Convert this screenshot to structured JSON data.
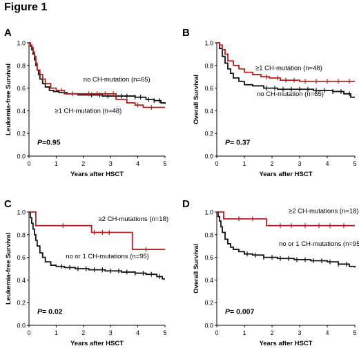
{
  "figure_title": "Figure 1",
  "colors": {
    "black_series": "#111111",
    "red_series": "#b42020",
    "axis": "#000000"
  },
  "chart_data": [
    {
      "panel_label": "A",
      "type": "line",
      "step": true,
      "xlabel": "Years after HSCT",
      "ylabel": "Leukemia-free Survival",
      "xlim": [
        0,
        5
      ],
      "ylim": [
        0,
        1.0
      ],
      "xticks": [
        "0",
        "1",
        "2",
        "3",
        "4",
        "5"
      ],
      "yticks": [
        "0.0",
        "0.2",
        "0.4",
        "0.6",
        "0.8",
        "1.0"
      ],
      "p_label": "P",
      "p_value": "=0.95",
      "series": [
        {
          "name": "no CH-mutation (n=65)",
          "color": "#111111",
          "x": [
            0,
            0.05,
            0.1,
            0.15,
            0.2,
            0.25,
            0.3,
            0.35,
            0.4,
            0.5,
            0.6,
            0.75,
            0.9,
            1.1,
            1.4,
            1.8,
            2.2,
            2.7,
            3.3,
            3.9,
            4.3,
            4.6,
            4.85,
            5.0
          ],
          "y": [
            1.0,
            0.97,
            0.94,
            0.9,
            0.85,
            0.8,
            0.76,
            0.72,
            0.68,
            0.64,
            0.61,
            0.58,
            0.57,
            0.56,
            0.55,
            0.54,
            0.54,
            0.53,
            0.53,
            0.52,
            0.5,
            0.49,
            0.47,
            0.46
          ],
          "censor_x": [
            2.3,
            2.6,
            2.9,
            3.2,
            3.4,
            3.6,
            3.9,
            4.1,
            4.4,
            4.6,
            4.8
          ]
        },
        {
          "name": "≥1 CH-mutation (n=48)",
          "color": "#b42020",
          "x": [
            0,
            0.05,
            0.1,
            0.15,
            0.2,
            0.25,
            0.3,
            0.4,
            0.5,
            0.6,
            0.8,
            1.0,
            1.3,
            1.7,
            2.1,
            2.6,
            3.2,
            3.6,
            3.9,
            4.2,
            5.0
          ],
          "y": [
            1.0,
            0.98,
            0.96,
            0.92,
            0.88,
            0.82,
            0.76,
            0.72,
            0.68,
            0.64,
            0.6,
            0.58,
            0.55,
            0.55,
            0.55,
            0.55,
            0.5,
            0.47,
            0.45,
            0.43,
            0.43
          ],
          "censor_x": [
            1.2,
            1.6,
            2.2,
            2.5,
            2.8,
            3.1,
            4.0,
            4.5
          ]
        }
      ],
      "annotations": [
        {
          "text": "no CH-mutation (n=65)",
          "at_x": 2.0,
          "at_y": 0.66
        },
        {
          "text": "≥1 CH-mutation (n=48)",
          "at_x": 0.95,
          "at_y": 0.38
        }
      ]
    },
    {
      "panel_label": "B",
      "type": "line",
      "step": true,
      "xlabel": "Years after HSCT",
      "ylabel": "Overall Survival",
      "xlim": [
        0,
        5
      ],
      "ylim": [
        0,
        1.0
      ],
      "xticks": [
        "0",
        "1",
        "2",
        "3",
        "4",
        "5"
      ],
      "yticks": [
        "0.0",
        "0.2",
        "0.4",
        "0.6",
        "0.8",
        "1.0"
      ],
      "p_label": "P",
      "p_value": "= 0.37",
      "series": [
        {
          "name": "no CH-mutation (n=65)",
          "color": "#111111",
          "x": [
            0,
            0.1,
            0.2,
            0.3,
            0.4,
            0.5,
            0.6,
            0.8,
            1.0,
            1.3,
            1.7,
            2.2,
            2.8,
            3.5,
            4.2,
            4.6,
            4.85,
            5.0
          ],
          "y": [
            1.0,
            0.95,
            0.88,
            0.82,
            0.77,
            0.73,
            0.69,
            0.66,
            0.63,
            0.62,
            0.6,
            0.59,
            0.59,
            0.58,
            0.57,
            0.55,
            0.52,
            0.52
          ],
          "censor_x": [
            1.8,
            2.1,
            2.4,
            2.7,
            3.0,
            3.3,
            3.6,
            3.9,
            4.2,
            4.5,
            4.8
          ]
        },
        {
          "name": "≥1 CH-mutation (n=48)",
          "color": "#b42020",
          "x": [
            0,
            0.1,
            0.2,
            0.3,
            0.4,
            0.6,
            0.8,
            1.0,
            1.3,
            1.6,
            1.9,
            2.3,
            3.0,
            5.0
          ],
          "y": [
            1.0,
            0.98,
            0.94,
            0.9,
            0.84,
            0.8,
            0.77,
            0.74,
            0.72,
            0.7,
            0.69,
            0.67,
            0.66,
            0.66
          ],
          "censor_x": [
            1.8,
            2.2,
            2.5,
            2.8,
            3.2,
            3.6,
            4.0,
            4.4,
            4.8
          ]
        }
      ],
      "annotations": [
        {
          "text": "≥1 CH-mutation (n=48)",
          "at_x": 1.4,
          "at_y": 0.76
        },
        {
          "text": "no CH-mutation (n=65)",
          "at_x": 1.45,
          "at_y": 0.53
        }
      ]
    },
    {
      "panel_label": "C",
      "type": "line",
      "step": true,
      "xlabel": "Years after HSCT",
      "ylabel": "Leukemia-free Survival",
      "xlim": [
        0,
        5
      ],
      "ylim": [
        0,
        1.0
      ],
      "xticks": [
        "0",
        "1",
        "2",
        "3",
        "4",
        "5"
      ],
      "yticks": [
        "0.0",
        "0.2",
        "0.4",
        "0.6",
        "0.8",
        "1.0"
      ],
      "p_label": "P",
      "p_value": "= 0.02",
      "series": [
        {
          "name": "no or 1 CH-mutations (n=95)",
          "color": "#111111",
          "x": [
            0,
            0.05,
            0.1,
            0.15,
            0.2,
            0.25,
            0.3,
            0.4,
            0.5,
            0.6,
            0.8,
            1.0,
            1.3,
            1.7,
            2.2,
            2.8,
            3.4,
            3.9,
            4.3,
            4.7,
            4.9,
            5.0
          ],
          "y": [
            1.0,
            0.95,
            0.9,
            0.85,
            0.8,
            0.75,
            0.7,
            0.64,
            0.6,
            0.56,
            0.53,
            0.52,
            0.51,
            0.5,
            0.49,
            0.48,
            0.47,
            0.46,
            0.45,
            0.43,
            0.41,
            0.41
          ],
          "censor_x": [
            1.2,
            1.5,
            1.8,
            2.1,
            2.4,
            2.7,
            3.0,
            3.3,
            3.6,
            3.9,
            4.2,
            4.5,
            4.8
          ]
        },
        {
          "name": "≥2 CH-mutations (n=18)",
          "color": "#b42020",
          "x": [
            0,
            0.25,
            1.3,
            2.3,
            3.8,
            5.0
          ],
          "y": [
            1.0,
            0.88,
            0.88,
            0.82,
            0.67,
            0.67
          ],
          "censor_x": [
            1.25,
            2.4,
            2.7,
            2.95,
            4.3
          ]
        }
      ],
      "annotations": [
        {
          "text": "≥2 CH-mutations (n=18)",
          "at_x": 2.55,
          "at_y": 0.92
        },
        {
          "text": "no or 1 CH-mutations (n=95)",
          "at_x": 1.35,
          "at_y": 0.59
        }
      ]
    },
    {
      "panel_label": "D",
      "type": "line",
      "step": true,
      "xlabel": "Years after HSCT",
      "ylabel": "Overall Survival",
      "xlim": [
        0,
        5
      ],
      "ylim": [
        0,
        1.0
      ],
      "xticks": [
        "0",
        "1",
        "2",
        "3",
        "4",
        "5"
      ],
      "yticks": [
        "0.0",
        "0.2",
        "0.4",
        "0.6",
        "0.8",
        "1.0"
      ],
      "p_label": "P",
      "p_value": "= 0.007",
      "series": [
        {
          "name": "no or 1 CH-mutations (n=95)",
          "color": "#111111",
          "x": [
            0,
            0.05,
            0.1,
            0.15,
            0.2,
            0.3,
            0.4,
            0.5,
            0.6,
            0.8,
            1.0,
            1.3,
            1.7,
            2.2,
            2.8,
            3.4,
            4.0,
            4.4,
            4.8,
            5.0
          ],
          "y": [
            1.0,
            0.96,
            0.92,
            0.87,
            0.82,
            0.76,
            0.72,
            0.69,
            0.67,
            0.65,
            0.63,
            0.62,
            0.6,
            0.59,
            0.58,
            0.57,
            0.56,
            0.54,
            0.52,
            0.51
          ],
          "censor_x": [
            1.1,
            1.4,
            1.7,
            2.0,
            2.3,
            2.6,
            2.9,
            3.2,
            3.5,
            3.8,
            4.1,
            4.4,
            4.7
          ]
        },
        {
          "name": "≥2 CH-mutations (n=18)",
          "color": "#b42020",
          "x": [
            0,
            0.25,
            1.8,
            5.0
          ],
          "y": [
            1.0,
            0.94,
            0.88,
            0.88
          ],
          "censor_x": [
            0.8,
            1.3,
            2.3,
            2.7,
            3.2,
            3.7,
            4.1,
            4.6
          ]
        }
      ],
      "annotations": [
        {
          "text": "≥2 CH-mutations (n=18)",
          "at_x": 2.6,
          "at_y": 0.99
        },
        {
          "text": "no or 1 CH-mutations (n=95)",
          "at_x": 2.25,
          "at_y": 0.7
        }
      ]
    }
  ]
}
